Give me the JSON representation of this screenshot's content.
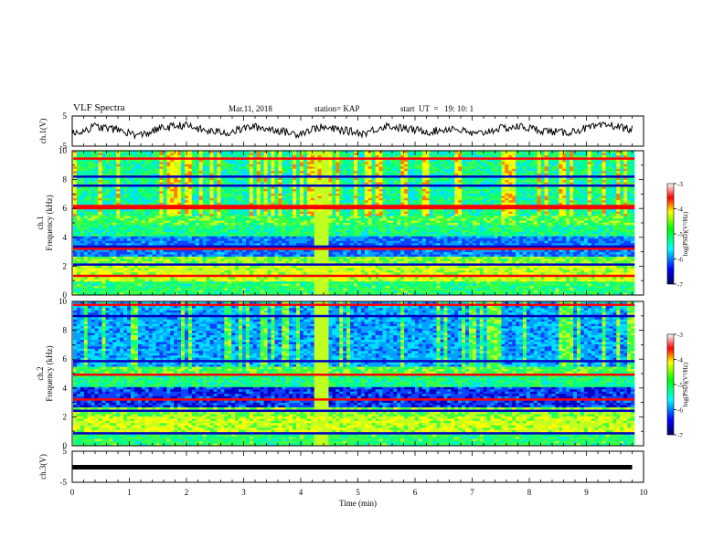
{
  "header": {
    "title": "VLF Spectra",
    "date": "Mar.11, 2018",
    "station": "station= KAP",
    "start": "start  UT  =   19: 10: 1"
  },
  "chart_data": [
    {
      "type": "line",
      "panel": "ch1-waveform",
      "ylabel": "ch.1(V)",
      "ylim": [
        -5,
        5
      ],
      "yticks": [
        "5",
        "-5"
      ],
      "xlim": [
        0,
        10
      ],
      "series": [
        {
          "values": [
            -1.0,
            1.5,
            0.5,
            -1.5,
            1.0,
            2.0,
            0.0,
            -0.5,
            1.5,
            0.5,
            -1.0,
            1.2,
            0.4,
            -0.8,
            1.8,
            0.6,
            -0.2,
            1.0,
            -1.2,
            0.8,
            1.5,
            0.2,
            -0.6,
            1.0,
            2.0,
            0.5
          ]
        }
      ]
    },
    {
      "type": "heatmap",
      "panel": "ch1-spectrogram",
      "ylabel": "ch.1\nFrequency (kHz)",
      "ylim": [
        0,
        10
      ],
      "yticks": [
        "0",
        "2",
        "4",
        "6",
        "8",
        "10"
      ],
      "xlim": [
        0,
        9.8
      ],
      "colorbar": {
        "label": "log(PSD)(V²/Hz)",
        "range": [
          -7,
          -3
        ],
        "ticks": [
          "-3",
          "-4",
          "-5",
          "-6",
          "-7"
        ]
      }
    },
    {
      "type": "heatmap",
      "panel": "ch2-spectrogram",
      "ylabel": "ch.2\nFrequency (kHz)",
      "ylim": [
        0,
        10
      ],
      "yticks": [
        "0",
        "2",
        "4",
        "6",
        "8",
        "10"
      ],
      "xlim": [
        0,
        9.8
      ],
      "colorbar": {
        "label": "log(PSD)(V²/Hz)",
        "range": [
          -7,
          -3
        ],
        "ticks": [
          "-3",
          "-4",
          "-5",
          "-6",
          "-7"
        ]
      }
    },
    {
      "type": "line",
      "panel": "ch3-waveform",
      "ylabel": "ch.3(V)",
      "ylim": [
        -5,
        5
      ],
      "yticks": [
        "5",
        "-5"
      ],
      "xlabel": "Time (min)",
      "xlim": [
        0,
        10
      ],
      "xticks": [
        "0",
        "1",
        "2",
        "3",
        "4",
        "5",
        "6",
        "7",
        "8",
        "9",
        "10"
      ],
      "series": [
        {
          "values": [
            0,
            0
          ]
        }
      ]
    }
  ]
}
